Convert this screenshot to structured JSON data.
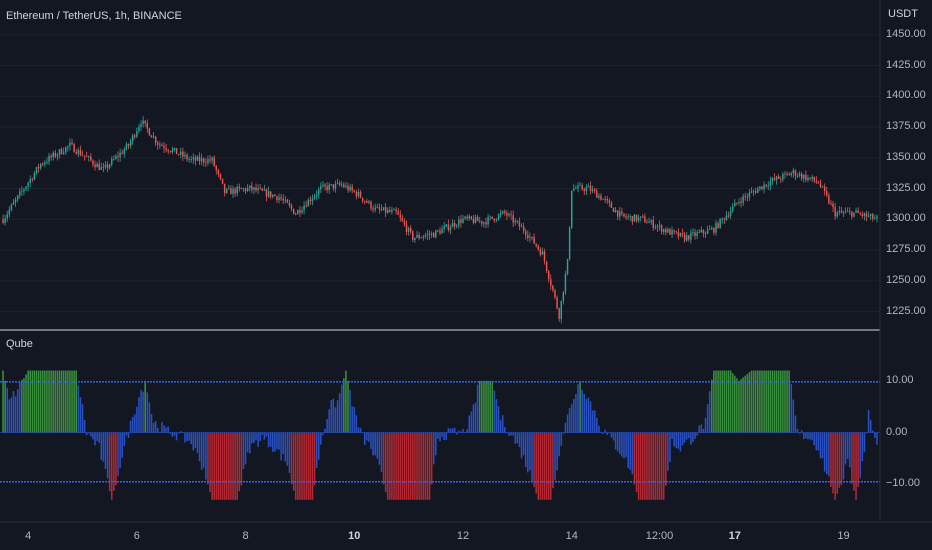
{
  "chart_data": [
    {
      "type": "candlestick",
      "title": "Ethereum / TetherUS, 1h, BINANCE",
      "unit": "USDT",
      "ylim": [
        1210,
        1462
      ],
      "y_ticks": [
        "1450.00",
        "1425.00",
        "1400.00",
        "1375.00",
        "1350.00",
        "1325.00",
        "1300.00",
        "1275.00",
        "1250.00",
        "1225.00"
      ],
      "y_tick_values": [
        1450,
        1425,
        1400,
        1375,
        1350,
        1325,
        1300,
        1275,
        1250,
        1225
      ],
      "x_ticks": [
        {
          "label": "4",
          "bold": false
        },
        {
          "label": "6",
          "bold": false
        },
        {
          "label": "8",
          "bold": false
        },
        {
          "label": "10",
          "bold": true
        },
        {
          "label": "12",
          "bold": false
        },
        {
          "label": "14",
          "bold": false
        },
        {
          "label": "12:00",
          "bold": false
        },
        {
          "label": "17",
          "bold": true
        },
        {
          "label": "19",
          "bold": false
        }
      ],
      "x_tick_index": [
        12,
        64,
        116,
        168,
        220,
        272,
        314,
        350,
        402
      ],
      "up_color": "#26a69a",
      "down_color": "#ef5350",
      "close_anchors": [
        [
          0,
          1300
        ],
        [
          8,
          1320
        ],
        [
          18,
          1345
        ],
        [
          32,
          1360
        ],
        [
          48,
          1340
        ],
        [
          60,
          1360
        ],
        [
          66,
          1380
        ],
        [
          74,
          1362
        ],
        [
          90,
          1348
        ],
        [
          100,
          1348
        ],
        [
          106,
          1322
        ],
        [
          118,
          1325
        ],
        [
          132,
          1318
        ],
        [
          140,
          1305
        ],
        [
          152,
          1325
        ],
        [
          162,
          1328
        ],
        [
          170,
          1320
        ],
        [
          178,
          1308
        ],
        [
          188,
          1305
        ],
        [
          196,
          1285
        ],
        [
          206,
          1288
        ],
        [
          220,
          1300
        ],
        [
          230,
          1298
        ],
        [
          240,
          1305
        ],
        [
          250,
          1290
        ],
        [
          258,
          1272
        ],
        [
          263,
          1242
        ],
        [
          266,
          1222
        ],
        [
          270,
          1265
        ],
        [
          272,
          1325
        ],
        [
          280,
          1325
        ],
        [
          286,
          1318
        ],
        [
          296,
          1302
        ],
        [
          306,
          1300
        ],
        [
          318,
          1290
        ],
        [
          326,
          1285
        ],
        [
          340,
          1292
        ],
        [
          352,
          1315
        ],
        [
          366,
          1330
        ],
        [
          378,
          1338
        ],
        [
          390,
          1330
        ],
        [
          398,
          1305
        ],
        [
          408,
          1305
        ],
        [
          418,
          1300
        ]
      ],
      "candle_count": 419
    },
    {
      "type": "bar",
      "title": "Qube",
      "ylim": [
        -14,
        15
      ],
      "y_ticks": [
        "10.00",
        "0.00",
        "−10.00"
      ],
      "y_tick_values": [
        10,
        0,
        -10
      ],
      "threshold_levels": [
        9.8,
        -9.5
      ],
      "threshold_color": "#2962ff",
      "colors": {
        "above": "#388e3c",
        "below": "#b22833",
        "neutral": "#2a4fbf"
      },
      "value_anchors": [
        [
          0,
          12
        ],
        [
          3,
          6
        ],
        [
          8,
          9
        ],
        [
          12,
          12
        ],
        [
          16,
          12
        ],
        [
          30,
          12
        ],
        [
          35,
          12
        ],
        [
          40,
          0
        ],
        [
          46,
          -3
        ],
        [
          52,
          -13
        ],
        [
          56,
          -6
        ],
        [
          60,
          0
        ],
        [
          64,
          6
        ],
        [
          68,
          10
        ],
        [
          72,
          2
        ],
        [
          80,
          0
        ],
        [
          86,
          -1
        ],
        [
          90,
          -2
        ],
        [
          96,
          -7
        ],
        [
          100,
          -13
        ],
        [
          112,
          -13
        ],
        [
          118,
          -3
        ],
        [
          124,
          -1
        ],
        [
          130,
          -3
        ],
        [
          136,
          -6
        ],
        [
          140,
          -13
        ],
        [
          148,
          -13
        ],
        [
          152,
          -2
        ],
        [
          156,
          5
        ],
        [
          160,
          6
        ],
        [
          164,
          12
        ],
        [
          168,
          4
        ],
        [
          172,
          -1
        ],
        [
          176,
          -3
        ],
        [
          180,
          -7
        ],
        [
          184,
          -13
        ],
        [
          204,
          -13
        ],
        [
          208,
          -1
        ],
        [
          214,
          0
        ],
        [
          220,
          0
        ],
        [
          224,
          3
        ],
        [
          228,
          10
        ],
        [
          234,
          10
        ],
        [
          238,
          3
        ],
        [
          244,
          -1
        ],
        [
          248,
          -4
        ],
        [
          252,
          -8
        ],
        [
          256,
          -13
        ],
        [
          262,
          -13
        ],
        [
          266,
          -4
        ],
        [
          268,
          0
        ],
        [
          272,
          6
        ],
        [
          276,
          10
        ],
        [
          282,
          5
        ],
        [
          286,
          1
        ],
        [
          290,
          -1
        ],
        [
          296,
          -4
        ],
        [
          300,
          -7
        ],
        [
          304,
          -13
        ],
        [
          316,
          -13
        ],
        [
          320,
          -2
        ],
        [
          324,
          -3
        ],
        [
          330,
          -1
        ],
        [
          336,
          2
        ],
        [
          340,
          12
        ],
        [
          348,
          12
        ],
        [
          352,
          10
        ],
        [
          358,
          12
        ],
        [
          376,
          12
        ],
        [
          380,
          0
        ],
        [
          386,
          -1
        ],
        [
          390,
          -3
        ],
        [
          394,
          -8
        ],
        [
          398,
          -13
        ],
        [
          404,
          -6
        ],
        [
          408,
          -13
        ],
        [
          412,
          -3
        ],
        [
          414,
          4
        ],
        [
          418,
          -2
        ]
      ],
      "bar_count": 419
    }
  ]
}
